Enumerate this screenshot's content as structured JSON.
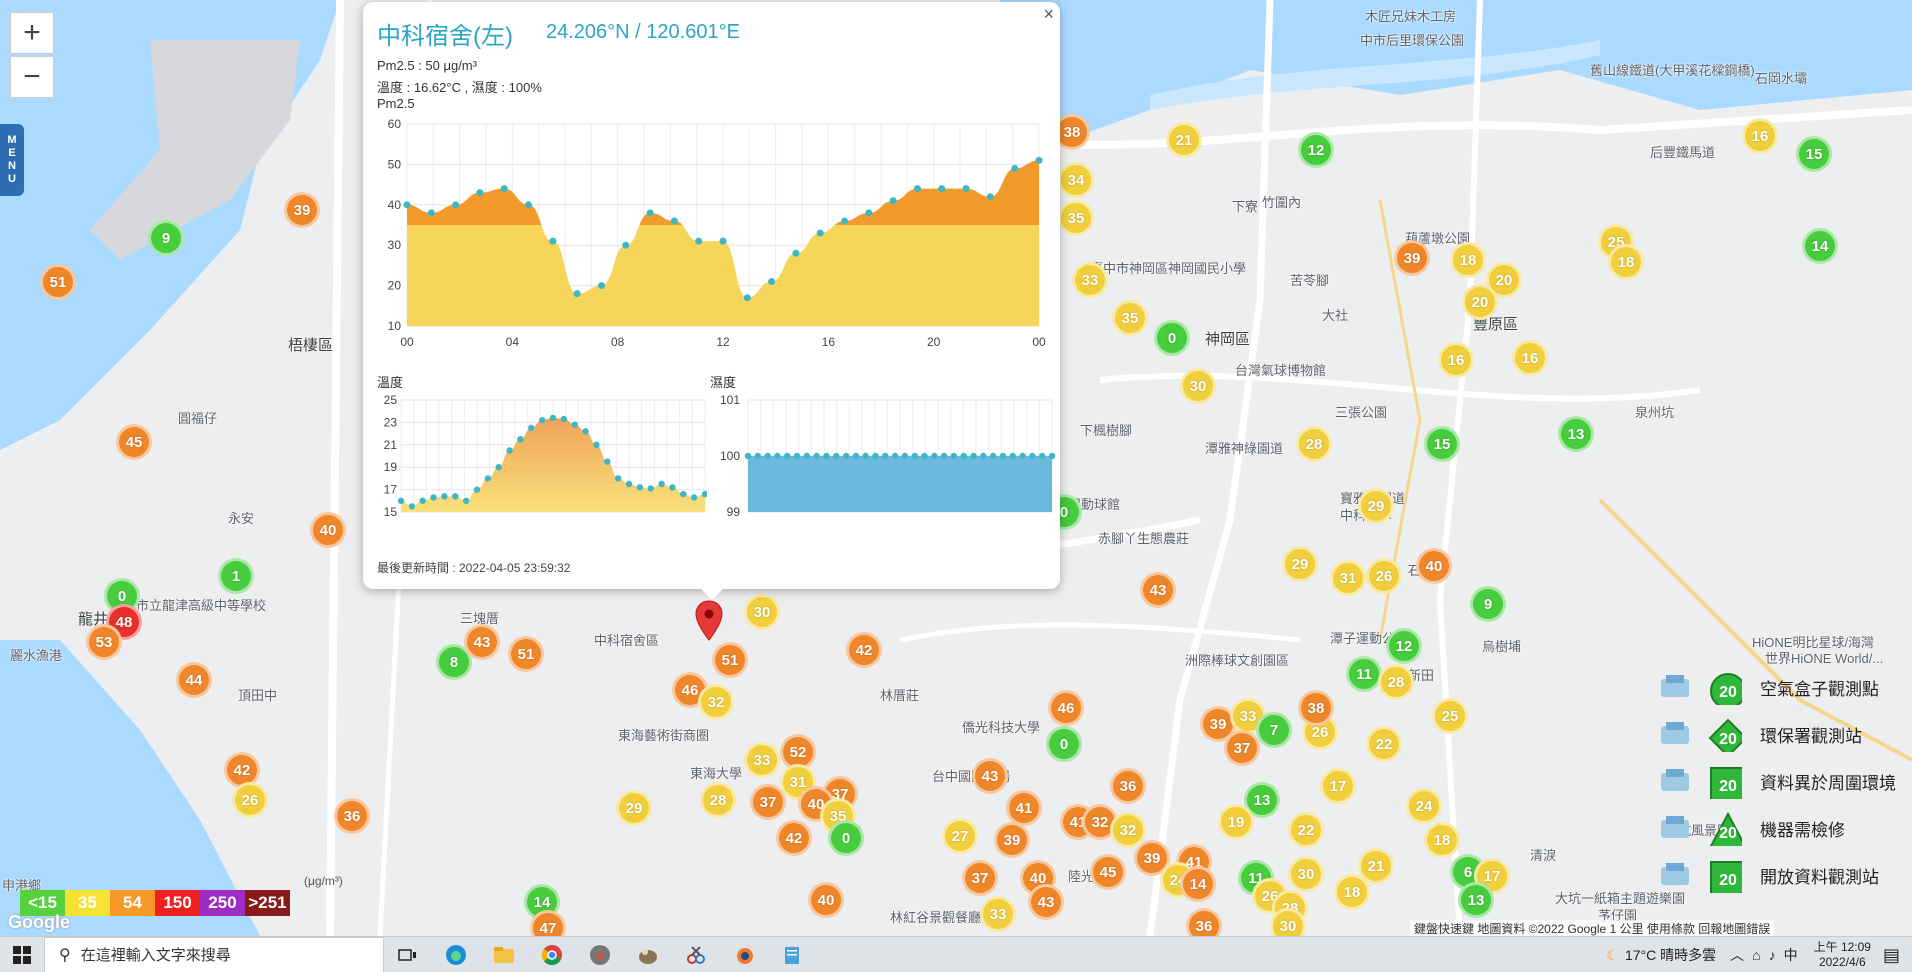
{
  "map": {
    "zoom_in_label": "+",
    "zoom_out_label": "−",
    "menu_label": "MENU",
    "place_labels": [
      {
        "text": "梧棲區",
        "x": 288,
        "y": 334,
        "big": true
      },
      {
        "text": "神岡區",
        "x": 1205,
        "y": 328,
        "big": true
      },
      {
        "text": "豐原區",
        "x": 1473,
        "y": 313,
        "big": true
      },
      {
        "text": "龍井",
        "x": 78,
        "y": 608,
        "big": true
      },
      {
        "text": "圓福仔",
        "x": 178,
        "y": 408
      },
      {
        "text": "永安",
        "x": 228,
        "y": 508
      },
      {
        "text": "三塊厝",
        "x": 460,
        "y": 608
      },
      {
        "text": "頂田中",
        "x": 238,
        "y": 685
      },
      {
        "text": "台中市立龍津高級中等學校",
        "x": 110,
        "y": 595
      },
      {
        "text": "麗水漁港",
        "x": 10,
        "y": 645
      },
      {
        "text": "東海藝術街商圈",
        "x": 618,
        "y": 725
      },
      {
        "text": "林厝莊",
        "x": 880,
        "y": 685
      },
      {
        "text": "東海大學",
        "x": 690,
        "y": 763
      },
      {
        "text": "中科宿舍區",
        "x": 594,
        "y": 630
      },
      {
        "text": "台灣氣球博物館",
        "x": 1235,
        "y": 360
      },
      {
        "text": "三張公園",
        "x": 1335,
        "y": 402
      },
      {
        "text": "下楓樹腳",
        "x": 1080,
        "y": 420
      },
      {
        "text": "潭雅神綠園道",
        "x": 1205,
        "y": 438
      },
      {
        "text": "環保動球館",
        "x": 1055,
        "y": 494
      },
      {
        "text": "赤腳丫生態農莊",
        "x": 1098,
        "y": 528
      },
      {
        "text": "洲際棒球文創園區",
        "x": 1185,
        "y": 650
      },
      {
        "text": "潭子運動公園",
        "x": 1330,
        "y": 628
      },
      {
        "text": "石頭坑",
        "x": 1408,
        "y": 560
      },
      {
        "text": "烏樹埔",
        "x": 1482,
        "y": 636
      },
      {
        "text": "新田",
        "x": 1408,
        "y": 665
      },
      {
        "text": "泉州坑",
        "x": 1635,
        "y": 402
      },
      {
        "text": "石岡水壩",
        "x": 1755,
        "y": 68
      },
      {
        "text": "后豐鐵馬道",
        "x": 1650,
        "y": 142
      },
      {
        "text": "舊山線鐵道(大甲溪花樑鋼橋)",
        "x": 1590,
        "y": 60
      },
      {
        "text": "木匠兄妹木工房",
        "x": 1365,
        "y": 6
      },
      {
        "text": "中市后里環保公園",
        "x": 1360,
        "y": 30
      },
      {
        "text": "葫蘆墩公園",
        "x": 1405,
        "y": 228
      },
      {
        "text": "苦苓腳",
        "x": 1290,
        "y": 270
      },
      {
        "text": "大社",
        "x": 1322,
        "y": 305
      },
      {
        "text": "竹圍內",
        "x": 1262,
        "y": 192
      },
      {
        "text": "下寮",
        "x": 1232,
        "y": 196
      },
      {
        "text": "臺中市神岡區神岡國民小學",
        "x": 1090,
        "y": 258
      },
      {
        "text": "寶雅神園道",
        "x": 1340,
        "y": 488
      },
      {
        "text": "中科大學",
        "x": 1340,
        "y": 505
      },
      {
        "text": "HiONE明比星球/海灣",
        "x": 1752,
        "y": 632
      },
      {
        "text": "世界HiONE World/...",
        "x": 1765,
        "y": 648
      },
      {
        "text": "大坑一紙箱主題遊樂園",
        "x": 1555,
        "y": 888
      },
      {
        "text": "大坑風景區",
        "x": 1665,
        "y": 820
      },
      {
        "text": "僑光科技大學",
        "x": 962,
        "y": 717
      },
      {
        "text": "台中國際機場",
        "x": 932,
        "y": 766
      },
      {
        "text": "陸光",
        "x": 1068,
        "y": 866
      },
      {
        "text": "林紅谷景觀餐廳",
        "x": 890,
        "y": 907
      },
      {
        "text": "申港鄉",
        "x": 2,
        "y": 875
      },
      {
        "text": "清淚",
        "x": 1530,
        "y": 845
      },
      {
        "text": "芧仔園",
        "x": 1598,
        "y": 905
      }
    ],
    "markers": [
      {
        "v": "9",
        "c": "g",
        "x": 166,
        "y": 238
      },
      {
        "v": "51",
        "c": "o",
        "x": 58,
        "y": 282
      },
      {
        "v": "39",
        "c": "o",
        "x": 302,
        "y": 210
      },
      {
        "v": "45",
        "c": "o",
        "x": 134,
        "y": 442
      },
      {
        "v": "40",
        "c": "o",
        "x": 328,
        "y": 530
      },
      {
        "v": "1",
        "c": "g",
        "x": 236,
        "y": 576
      },
      {
        "v": "0",
        "c": "g",
        "x": 122,
        "y": 596
      },
      {
        "v": "48",
        "c": "r",
        "x": 124,
        "y": 622
      },
      {
        "v": "53",
        "c": "o",
        "x": 104,
        "y": 642
      },
      {
        "v": "44",
        "c": "o",
        "x": 194,
        "y": 680
      },
      {
        "v": "8",
        "c": "g",
        "x": 454,
        "y": 662
      },
      {
        "v": "43",
        "c": "o",
        "x": 482,
        "y": 642
      },
      {
        "v": "51",
        "c": "o",
        "x": 526,
        "y": 654
      },
      {
        "v": "30",
        "c": "y",
        "x": 762,
        "y": 612
      },
      {
        "v": "51",
        "c": "o",
        "x": 730,
        "y": 660
      },
      {
        "v": "46",
        "c": "o",
        "x": 690,
        "y": 690
      },
      {
        "v": "32",
        "c": "y",
        "x": 716,
        "y": 702
      },
      {
        "v": "42",
        "c": "o",
        "x": 864,
        "y": 650
      },
      {
        "v": "52",
        "c": "o",
        "x": 798,
        "y": 752
      },
      {
        "v": "33",
        "c": "y",
        "x": 762,
        "y": 760
      },
      {
        "v": "31",
        "c": "y",
        "x": 798,
        "y": 782
      },
      {
        "v": "37",
        "c": "o",
        "x": 840,
        "y": 794
      },
      {
        "v": "28",
        "c": "y",
        "x": 718,
        "y": 800
      },
      {
        "v": "37",
        "c": "o",
        "x": 768,
        "y": 802
      },
      {
        "v": "40",
        "c": "o",
        "x": 816,
        "y": 804
      },
      {
        "v": "35",
        "c": "y",
        "x": 838,
        "y": 816
      },
      {
        "v": "0",
        "c": "g",
        "x": 846,
        "y": 838
      },
      {
        "v": "42",
        "c": "o",
        "x": 794,
        "y": 838
      },
      {
        "v": "29",
        "c": "y",
        "x": 634,
        "y": 808
      },
      {
        "v": "42",
        "c": "o",
        "x": 242,
        "y": 770
      },
      {
        "v": "26",
        "c": "y",
        "x": 250,
        "y": 800
      },
      {
        "v": "36",
        "c": "o",
        "x": 352,
        "y": 816
      },
      {
        "v": "14",
        "c": "g",
        "x": 542,
        "y": 902
      },
      {
        "v": "47",
        "c": "o",
        "x": 548,
        "y": 928
      },
      {
        "v": "40",
        "c": "o",
        "x": 826,
        "y": 900
      },
      {
        "v": "38",
        "c": "o",
        "x": 1072,
        "y": 132
      },
      {
        "v": "34",
        "c": "y",
        "x": 1076,
        "y": 180
      },
      {
        "v": "35",
        "c": "y",
        "x": 1076,
        "y": 218
      },
      {
        "v": "33",
        "c": "y",
        "x": 1090,
        "y": 280
      },
      {
        "v": "21",
        "c": "y",
        "x": 1184,
        "y": 140
      },
      {
        "v": "12",
        "c": "g",
        "x": 1316,
        "y": 150
      },
      {
        "v": "35",
        "c": "y",
        "x": 1130,
        "y": 318
      },
      {
        "v": "0",
        "c": "g",
        "x": 1172,
        "y": 338
      },
      {
        "v": "30",
        "c": "y",
        "x": 1198,
        "y": 386
      },
      {
        "v": "28",
        "c": "y",
        "x": 1314,
        "y": 444
      },
      {
        "v": "15",
        "c": "g",
        "x": 1442,
        "y": 444
      },
      {
        "v": "13",
        "c": "g",
        "x": 1576,
        "y": 434
      },
      {
        "v": "0",
        "c": "g",
        "x": 1064,
        "y": 512
      },
      {
        "v": "43",
        "c": "o",
        "x": 1158,
        "y": 590
      },
      {
        "v": "29",
        "c": "y",
        "x": 1376,
        "y": 506
      },
      {
        "v": "29",
        "c": "y",
        "x": 1300,
        "y": 564
      },
      {
        "v": "31",
        "c": "y",
        "x": 1348,
        "y": 578
      },
      {
        "v": "26",
        "c": "y",
        "x": 1384,
        "y": 576
      },
      {
        "v": "40",
        "c": "o",
        "x": 1434,
        "y": 566
      },
      {
        "v": "9",
        "c": "g",
        "x": 1488,
        "y": 604
      },
      {
        "v": "12",
        "c": "g",
        "x": 1404,
        "y": 646
      },
      {
        "v": "11",
        "c": "g",
        "x": 1364,
        "y": 674
      },
      {
        "v": "28",
        "c": "y",
        "x": 1396,
        "y": 682
      },
      {
        "v": "39",
        "c": "o",
        "x": 1412,
        "y": 258
      },
      {
        "v": "18",
        "c": "y",
        "x": 1468,
        "y": 260
      },
      {
        "v": "20",
        "c": "y",
        "x": 1504,
        "y": 280
      },
      {
        "v": "20",
        "c": "y",
        "x": 1480,
        "y": 302
      },
      {
        "v": "16",
        "c": "y",
        "x": 1456,
        "y": 360
      },
      {
        "v": "16",
        "c": "y",
        "x": 1530,
        "y": 358
      },
      {
        "v": "25",
        "c": "y",
        "x": 1616,
        "y": 242
      },
      {
        "v": "18",
        "c": "y",
        "x": 1626,
        "y": 262
      },
      {
        "v": "16",
        "c": "y",
        "x": 1760,
        "y": 136
      },
      {
        "v": "15",
        "c": "g",
        "x": 1814,
        "y": 154
      },
      {
        "v": "14",
        "c": "g",
        "x": 1820,
        "y": 246
      },
      {
        "v": "46",
        "c": "o",
        "x": 1066,
        "y": 708
      },
      {
        "v": "0",
        "c": "g",
        "x": 1064,
        "y": 744
      },
      {
        "v": "43",
        "c": "o",
        "x": 990,
        "y": 776
      },
      {
        "v": "41",
        "c": "o",
        "x": 1024,
        "y": 808
      },
      {
        "v": "27",
        "c": "y",
        "x": 960,
        "y": 836
      },
      {
        "v": "39",
        "c": "o",
        "x": 1012,
        "y": 840
      },
      {
        "v": "41",
        "c": "o",
        "x": 1078,
        "y": 822
      },
      {
        "v": "32",
        "c": "o",
        "x": 1100,
        "y": 822
      },
      {
        "v": "32",
        "c": "y",
        "x": 1128,
        "y": 830
      },
      {
        "v": "36",
        "c": "o",
        "x": 1128,
        "y": 786
      },
      {
        "v": "37",
        "c": "o",
        "x": 980,
        "y": 878
      },
      {
        "v": "40",
        "c": "o",
        "x": 1038,
        "y": 878
      },
      {
        "v": "43",
        "c": "o",
        "x": 1046,
        "y": 902
      },
      {
        "v": "45",
        "c": "o",
        "x": 1108,
        "y": 872
      },
      {
        "v": "33",
        "c": "y",
        "x": 998,
        "y": 914
      },
      {
        "v": "39",
        "c": "o",
        "x": 1152,
        "y": 858
      },
      {
        "v": "41",
        "c": "o",
        "x": 1194,
        "y": 862
      },
      {
        "v": "24",
        "c": "y",
        "x": 1178,
        "y": 880
      },
      {
        "v": "14",
        "c": "o",
        "x": 1198,
        "y": 884
      },
      {
        "v": "39",
        "c": "o",
        "x": 1218,
        "y": 724
      },
      {
        "v": "33",
        "c": "y",
        "x": 1248,
        "y": 716
      },
      {
        "v": "37",
        "c": "o",
        "x": 1242,
        "y": 748
      },
      {
        "v": "7",
        "c": "g",
        "x": 1274,
        "y": 730
      },
      {
        "v": "26",
        "c": "y",
        "x": 1320,
        "y": 732
      },
      {
        "v": "38",
        "c": "o",
        "x": 1316,
        "y": 708
      },
      {
        "v": "22",
        "c": "y",
        "x": 1384,
        "y": 744
      },
      {
        "v": "17",
        "c": "y",
        "x": 1338,
        "y": 786
      },
      {
        "v": "13",
        "c": "g",
        "x": 1262,
        "y": 800
      },
      {
        "v": "19",
        "c": "y",
        "x": 1236,
        "y": 822
      },
      {
        "v": "22",
        "c": "y",
        "x": 1306,
        "y": 830
      },
      {
        "v": "24",
        "c": "y",
        "x": 1424,
        "y": 806
      },
      {
        "v": "18",
        "c": "y",
        "x": 1442,
        "y": 840
      },
      {
        "v": "25",
        "c": "y",
        "x": 1450,
        "y": 716
      },
      {
        "v": "21",
        "c": "y",
        "x": 1376,
        "y": 866
      },
      {
        "v": "30",
        "c": "y",
        "x": 1306,
        "y": 874
      },
      {
        "v": "11",
        "c": "g",
        "x": 1256,
        "y": 878
      },
      {
        "v": "26",
        "c": "y",
        "x": 1270,
        "y": 896
      },
      {
        "v": "18",
        "c": "y",
        "x": 1352,
        "y": 892
      },
      {
        "v": "28",
        "c": "y",
        "x": 1290,
        "y": 908
      },
      {
        "v": "6",
        "c": "g",
        "x": 1468,
        "y": 872
      },
      {
        "v": "17",
        "c": "y",
        "x": 1492,
        "y": 876
      },
      {
        "v": "13",
        "c": "g",
        "x": 1476,
        "y": 900
      },
      {
        "v": "36",
        "c": "o",
        "x": 1204,
        "y": 926
      },
      {
        "v": "30",
        "c": "y",
        "x": 1288,
        "y": 926
      }
    ]
  },
  "popup": {
    "site_name": "中科宿舍(左)",
    "coordinates": "24.206°N / 120.601°E",
    "pm25_line": "Pm2.5 : 50 μg/m³",
    "temp_humid_line": "溫度 : 16.62°C , 濕度 : 100%",
    "chart_label": "Pm2.5",
    "temp_label": "溫度",
    "humid_label": "濕度",
    "updated": "最後更新時間 : 2022-04-05 23:59:32",
    "close_label": "×"
  },
  "chart_data": [
    {
      "type": "area",
      "title": "Pm2.5",
      "x_ticks": [
        "00",
        "04",
        "08",
        "12",
        "16",
        "20",
        "00"
      ],
      "y_ticks": [
        10,
        20,
        30,
        40,
        50,
        60
      ],
      "ylim": [
        10,
        60
      ],
      "threshold": 35,
      "values": [
        40,
        38,
        40,
        43,
        44,
        40,
        31,
        18,
        20,
        30,
        38,
        36,
        31,
        31,
        17,
        21,
        28,
        33,
        36,
        38,
        41,
        44,
        44,
        44,
        42,
        49,
        51
      ]
    },
    {
      "type": "area",
      "title": "溫度",
      "y_ticks": [
        15,
        17,
        19,
        21,
        23,
        25
      ],
      "ylim": [
        15,
        25
      ],
      "values": [
        16,
        15.5,
        16,
        16.3,
        16.4,
        16.4,
        16,
        17,
        18,
        19,
        20.5,
        21.5,
        22.5,
        23.2,
        23.4,
        23.3,
        22.8,
        22.2,
        21,
        19.5,
        18,
        17.5,
        17.2,
        17.1,
        17.5,
        17.2,
        16.6,
        16.3,
        16.6
      ]
    },
    {
      "type": "bar",
      "title": "濕度",
      "y_ticks": [
        99,
        100,
        101
      ],
      "ylim": [
        99,
        101
      ],
      "values": [
        100,
        100,
        100,
        100,
        100,
        100,
        100,
        100,
        100,
        100,
        100,
        100,
        100,
        100,
        100,
        100,
        100,
        100,
        100,
        100,
        100,
        100,
        100,
        100,
        100,
        100,
        100,
        100,
        100,
        100,
        100,
        100
      ]
    }
  ],
  "legend": [
    {
      "label": "空氣盒子觀測點",
      "shape": "circle",
      "value": "20"
    },
    {
      "label": "環保署觀測站",
      "shape": "diamond",
      "value": "20"
    },
    {
      "label": "資料異於周圍環境",
      "shape": "square",
      "value": "20"
    },
    {
      "label": "機器需檢修",
      "shape": "triangle",
      "value": "20"
    },
    {
      "label": "開放資料觀測站",
      "shape": "square",
      "value": "20"
    }
  ],
  "scale": {
    "unit": "(μg/m³)",
    "levels": [
      {
        "label": "<15",
        "color": "#56d23c"
      },
      {
        "label": "35",
        "color": "#f6e232"
      },
      {
        "label": "54",
        "color": "#f59a27"
      },
      {
        "label": "150",
        "color": "#ee2020"
      },
      {
        "label": "250",
        "color": "#a02cc6"
      },
      {
        "label": ">251",
        "color": "#8a1a1a"
      }
    ]
  },
  "attribution": "鍵盤快速鍵   地圖資料 ©2022 Google   1 公里        使用條款   回報地圖錯誤",
  "google_logo": "Google",
  "colors": {
    "g": "#46cc3c",
    "y": "#f1cf3c",
    "o": "#f0862a",
    "r": "#e8302a"
  },
  "taskbar": {
    "search_placeholder": "在這裡輸入文字來搜尋",
    "weather": "17°C  晴時多雲",
    "ime": "中",
    "time": "上午 12:09",
    "date": "2022/4/6"
  }
}
